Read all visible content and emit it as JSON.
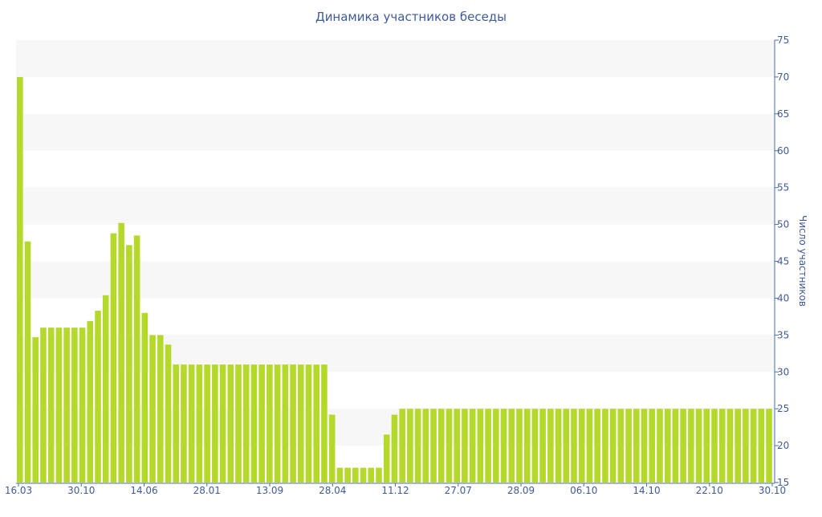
{
  "chart_data": {
    "type": "bar",
    "title": "Динамика участников беседы",
    "xlabel": "",
    "ylabel": "Число участников",
    "y_axis_side": "right",
    "ylim": [
      15,
      75
    ],
    "yticks": [
      15,
      20,
      25,
      30,
      35,
      40,
      45,
      50,
      55,
      60,
      65,
      70,
      75
    ],
    "grid": "alternating horizontal bands",
    "legend": "none",
    "x_tick_labels": [
      "16.03",
      "30.10",
      "14.06",
      "28.01",
      "13.09",
      "28.04",
      "11.12",
      "27.07",
      "28.09",
      "06.10",
      "14.10",
      "22.10",
      "30.10"
    ],
    "values": [
      70,
      47.7,
      34.7,
      36,
      36,
      36,
      36,
      36,
      36,
      36.9,
      38.3,
      40.4,
      48.8,
      50.2,
      47.2,
      48.5,
      38,
      35,
      35,
      33.7,
      31,
      31,
      31,
      31,
      31,
      31,
      31,
      31,
      31,
      31,
      31,
      31,
      31,
      31,
      31,
      31,
      31,
      31,
      31,
      31,
      24.2,
      17,
      17,
      17,
      17,
      17,
      17,
      21.5,
      24.2,
      25,
      25,
      25,
      25,
      25,
      25,
      25,
      25,
      25,
      25,
      25,
      25,
      25,
      25,
      25,
      25,
      25,
      25,
      25,
      25,
      25,
      25,
      25,
      25,
      25,
      25,
      25,
      25,
      25,
      25,
      25,
      25,
      25,
      25,
      25,
      25,
      25,
      25,
      25,
      25,
      25,
      25,
      25,
      25,
      25,
      25,
      25,
      25
    ],
    "colors": {
      "bar": "#b5d92a",
      "band": "#f7f7f7",
      "axis_text": "#3f5a9a",
      "axis_line": "#4a6aa8",
      "title": "#3f5a9a"
    }
  }
}
